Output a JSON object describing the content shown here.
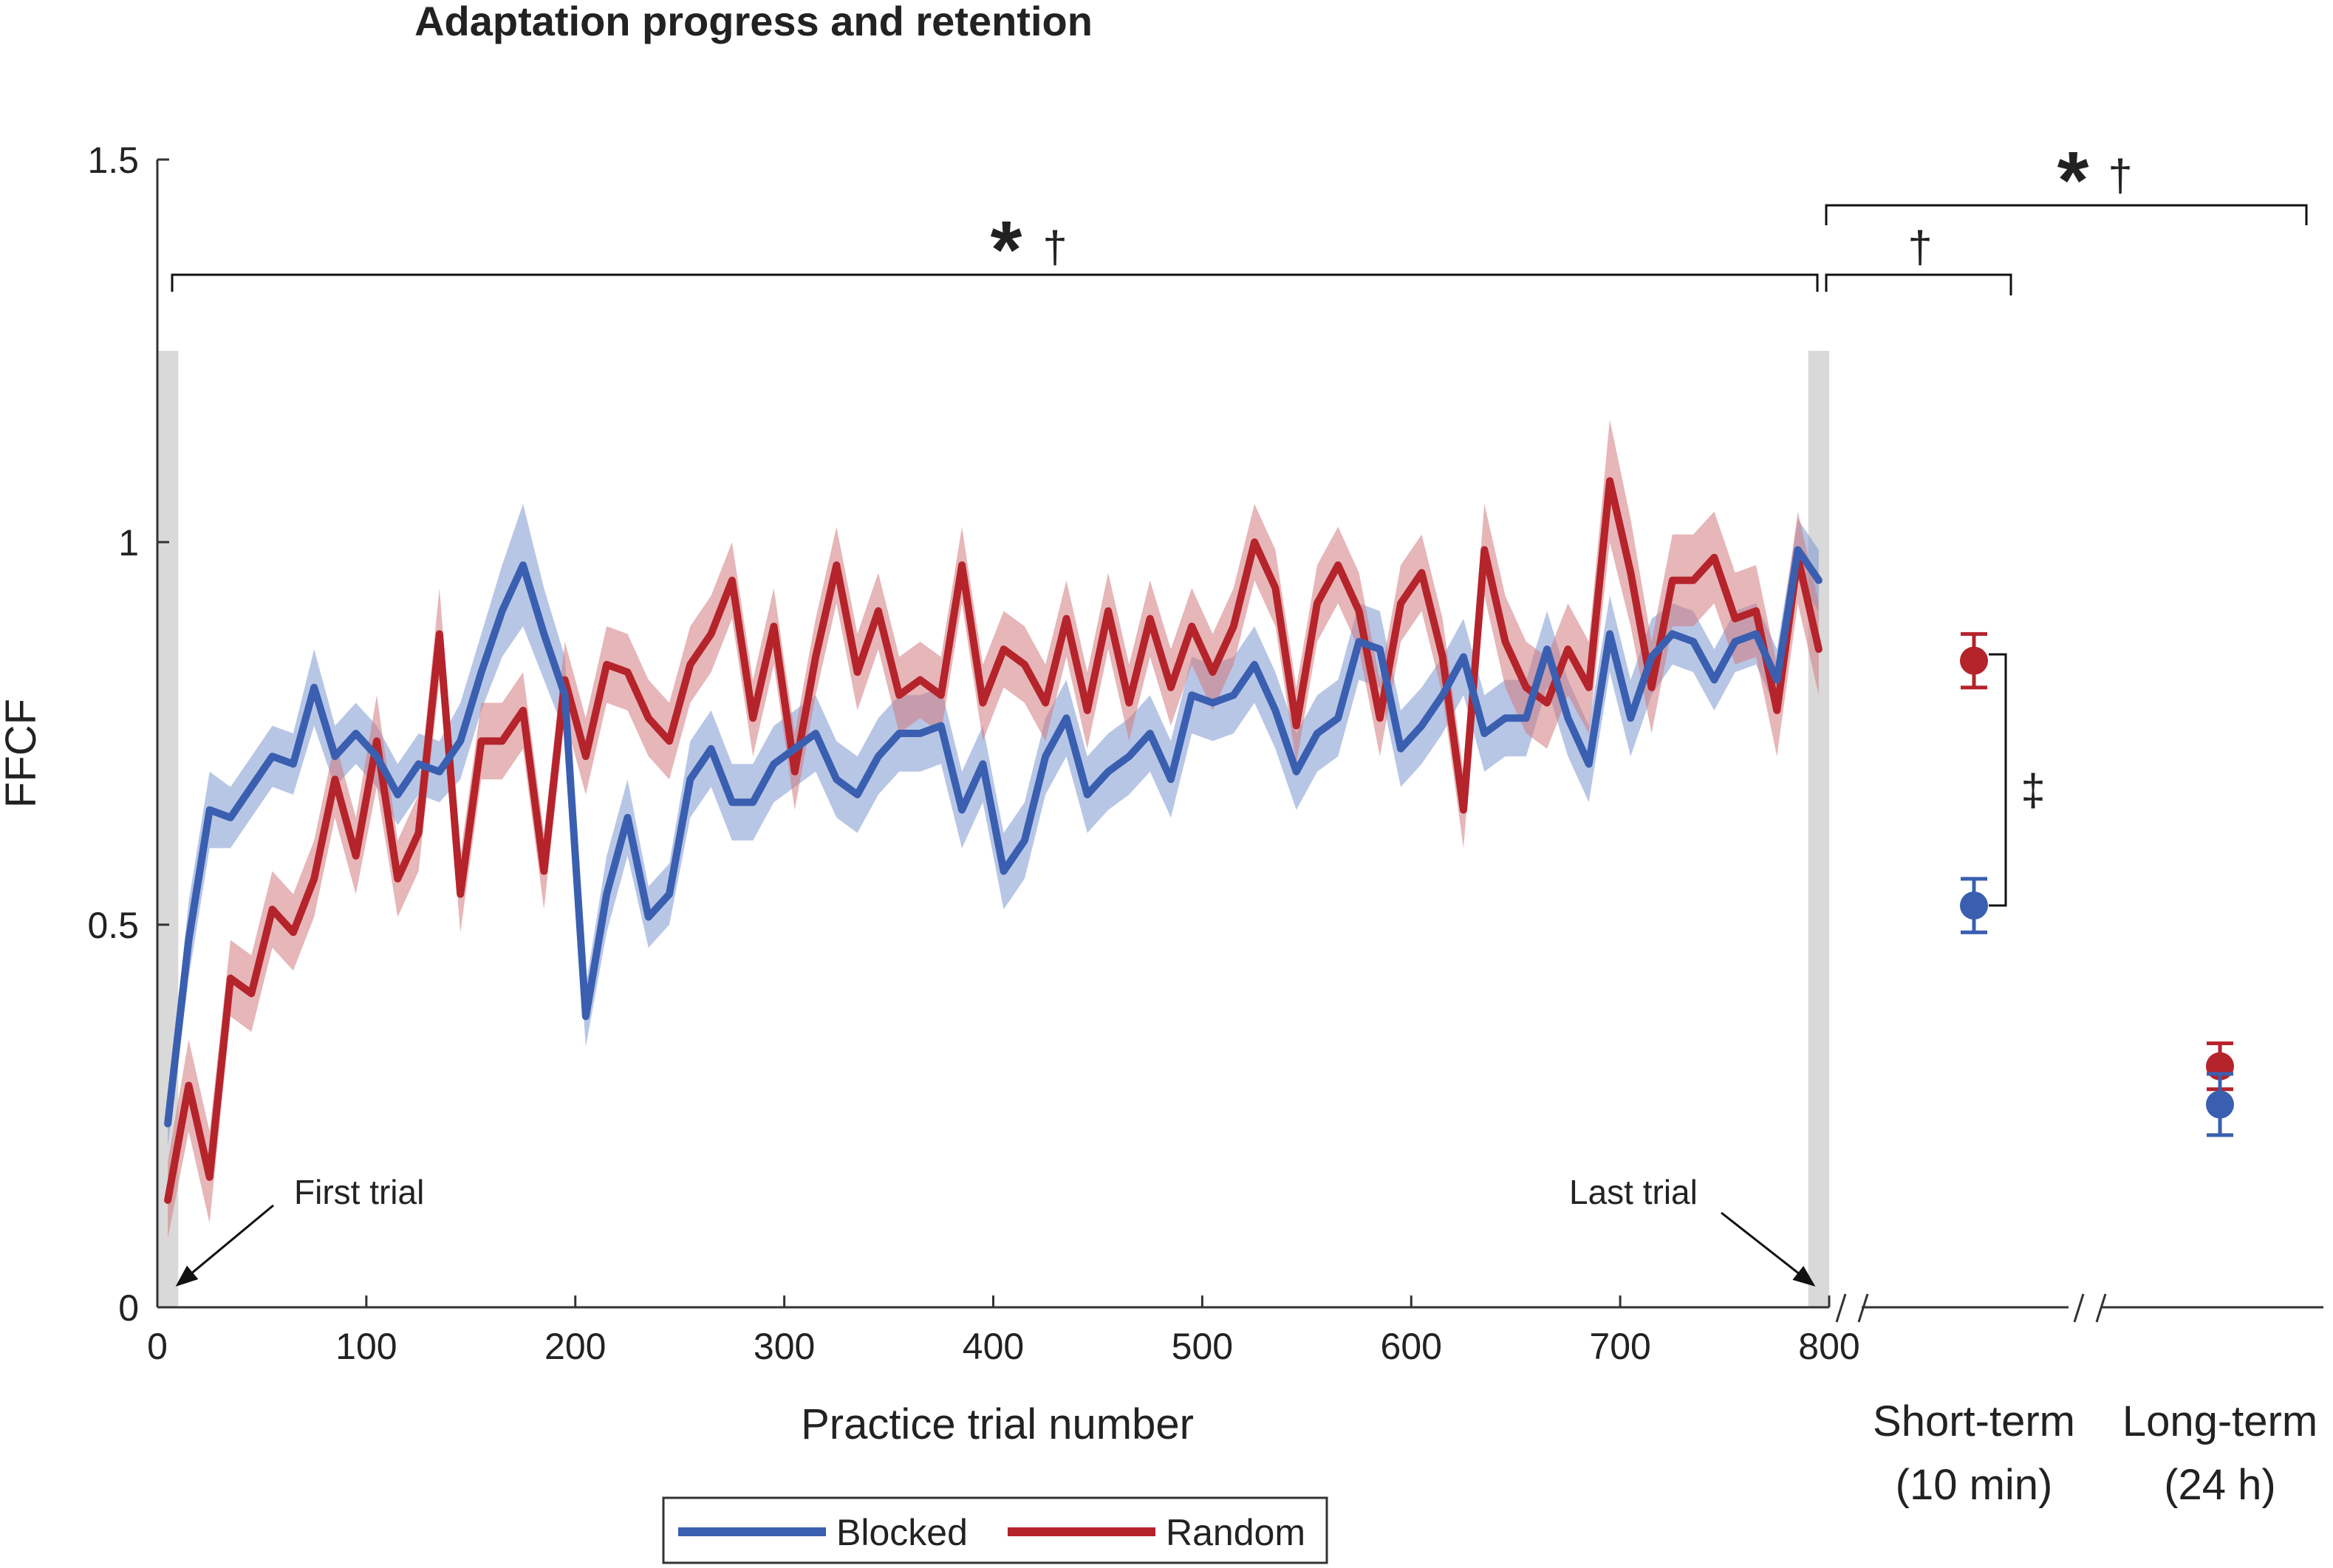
{
  "chart_data": {
    "type": "line",
    "title": "Adaptation progress and retention",
    "xlabel": "Practice trial number",
    "ylabel": "FFCF",
    "xlim": [
      0,
      800
    ],
    "ylim": [
      0,
      1.5
    ],
    "x_ticks": [
      0,
      100,
      200,
      300,
      400,
      500,
      600,
      700,
      800
    ],
    "x_tick_labels": [
      "0",
      "100",
      "200",
      "300",
      "400",
      "500",
      "600",
      "700",
      "800"
    ],
    "y_ticks": [
      0,
      0.5,
      1,
      1.5
    ],
    "y_tick_labels": [
      "0",
      "0.5",
      "1",
      "1.5"
    ],
    "x": [
      5,
      15,
      25,
      35,
      45,
      55,
      65,
      75,
      85,
      95,
      105,
      115,
      125,
      135,
      145,
      155,
      165,
      175,
      185,
      195,
      205,
      215,
      225,
      235,
      245,
      255,
      265,
      275,
      285,
      295,
      305,
      315,
      325,
      335,
      345,
      355,
      365,
      375,
      385,
      395,
      405,
      415,
      425,
      435,
      445,
      455,
      465,
      475,
      485,
      495,
      505,
      515,
      525,
      535,
      545,
      555,
      565,
      575,
      585,
      595,
      605,
      615,
      625,
      635,
      645,
      655,
      665,
      675,
      685,
      695,
      705,
      715,
      725,
      735,
      745,
      755,
      765,
      775,
      785,
      795
    ],
    "series": [
      {
        "name": "Blocked",
        "color": "#3a5fb0",
        "band_color": "#7e98d2",
        "values": [
          0.24,
          0.48,
          0.65,
          0.64,
          0.68,
          0.72,
          0.71,
          0.81,
          0.72,
          0.75,
          0.72,
          0.67,
          0.71,
          0.7,
          0.74,
          0.83,
          0.91,
          0.97,
          0.88,
          0.8,
          0.38,
          0.54,
          0.64,
          0.51,
          0.54,
          0.69,
          0.73,
          0.66,
          0.66,
          0.71,
          0.73,
          0.75,
          0.69,
          0.67,
          0.72,
          0.75,
          0.75,
          0.76,
          0.65,
          0.71,
          0.57,
          0.61,
          0.72,
          0.77,
          0.67,
          0.7,
          0.72,
          0.75,
          0.69,
          0.8,
          0.79,
          0.8,
          0.84,
          0.78,
          0.7,
          0.75,
          0.77,
          0.87,
          0.86,
          0.73,
          0.76,
          0.8,
          0.85,
          0.75,
          0.77,
          0.77,
          0.86,
          0.77,
          0.71,
          0.88,
          0.77,
          0.85,
          0.88,
          0.87,
          0.82,
          0.87,
          0.88,
          0.82,
          0.99,
          0.95
        ],
        "errors": [
          0.03,
          0.05,
          0.05,
          0.04,
          0.04,
          0.04,
          0.04,
          0.05,
          0.04,
          0.04,
          0.04,
          0.04,
          0.04,
          0.04,
          0.05,
          0.05,
          0.06,
          0.08,
          0.06,
          0.05,
          0.04,
          0.05,
          0.05,
          0.04,
          0.04,
          0.05,
          0.05,
          0.05,
          0.05,
          0.05,
          0.05,
          0.05,
          0.05,
          0.05,
          0.05,
          0.05,
          0.05,
          0.05,
          0.05,
          0.05,
          0.05,
          0.05,
          0.05,
          0.05,
          0.05,
          0.05,
          0.05,
          0.05,
          0.05,
          0.05,
          0.05,
          0.05,
          0.05,
          0.05,
          0.05,
          0.05,
          0.05,
          0.05,
          0.05,
          0.05,
          0.05,
          0.05,
          0.05,
          0.05,
          0.05,
          0.05,
          0.05,
          0.05,
          0.05,
          0.05,
          0.05,
          0.05,
          0.04,
          0.04,
          0.04,
          0.04,
          0.04,
          0.04,
          0.04,
          0.04
        ]
      },
      {
        "name": "Random",
        "color": "#b5232b",
        "band_color": "#d27a7e",
        "values": [
          0.14,
          0.29,
          0.17,
          0.43,
          0.41,
          0.52,
          0.49,
          0.56,
          0.69,
          0.59,
          0.74,
          0.56,
          0.62,
          0.88,
          0.54,
          0.74,
          0.74,
          0.78,
          0.57,
          0.82,
          0.72,
          0.84,
          0.83,
          0.77,
          0.74,
          0.84,
          0.88,
          0.95,
          0.77,
          0.89,
          0.7,
          0.85,
          0.97,
          0.83,
          0.91,
          0.8,
          0.82,
          0.8,
          0.97,
          0.79,
          0.86,
          0.84,
          0.79,
          0.9,
          0.78,
          0.91,
          0.79,
          0.9,
          0.81,
          0.89,
          0.83,
          0.89,
          1.0,
          0.94,
          0.76,
          0.92,
          0.97,
          0.91,
          0.77,
          0.92,
          0.96,
          0.85,
          0.65,
          0.99,
          0.87,
          0.81,
          0.79,
          0.86,
          0.81,
          1.08,
          0.96,
          0.81,
          0.95,
          0.95,
          0.98,
          0.9,
          0.91,
          0.78,
          0.98,
          0.86
        ],
        "errors": [
          0.05,
          0.06,
          0.06,
          0.05,
          0.05,
          0.05,
          0.05,
          0.05,
          0.05,
          0.05,
          0.06,
          0.05,
          0.05,
          0.06,
          0.05,
          0.05,
          0.05,
          0.05,
          0.05,
          0.05,
          0.05,
          0.05,
          0.05,
          0.05,
          0.05,
          0.05,
          0.05,
          0.05,
          0.05,
          0.05,
          0.05,
          0.05,
          0.05,
          0.05,
          0.05,
          0.05,
          0.05,
          0.05,
          0.05,
          0.05,
          0.05,
          0.05,
          0.05,
          0.05,
          0.05,
          0.05,
          0.05,
          0.05,
          0.05,
          0.05,
          0.05,
          0.05,
          0.05,
          0.05,
          0.05,
          0.05,
          0.05,
          0.05,
          0.05,
          0.05,
          0.05,
          0.05,
          0.05,
          0.06,
          0.06,
          0.06,
          0.06,
          0.06,
          0.06,
          0.08,
          0.07,
          0.06,
          0.06,
          0.06,
          0.06,
          0.06,
          0.06,
          0.06,
          0.06,
          0.06
        ]
      }
    ],
    "retention": {
      "categories": [
        {
          "label": "Short-term",
          "sublabel": "(10 min)"
        },
        {
          "label": "Long-term",
          "sublabel": "(24 h)"
        }
      ],
      "series": [
        {
          "name": "Random",
          "values": [
            0.845,
            0.315
          ],
          "errors": [
            0.035,
            0.03
          ]
        },
        {
          "name": "Blocked",
          "values": [
            0.525,
            0.265
          ],
          "errors": [
            0.035,
            0.04
          ]
        }
      ]
    },
    "shaded_regions": [
      {
        "x": [
          0,
          10
        ],
        "ylim": [
          0,
          1.25
        ],
        "color": "#d9d9d9"
      },
      {
        "x": [
          790,
          800
        ],
        "ylim": [
          0,
          1.25
        ],
        "color": "#d9d9d9"
      }
    ],
    "annotations": {
      "first_trial": "First trial",
      "last_trial": "Last trial",
      "practice_star": "*",
      "practice_dagger": "†",
      "short_term_dagger": "†",
      "long_term_star": "*",
      "long_term_dagger": "†",
      "retention_double_dagger": "‡"
    },
    "legend": {
      "position": "bottom-center",
      "entries": [
        "Blocked",
        "Random"
      ]
    }
  }
}
